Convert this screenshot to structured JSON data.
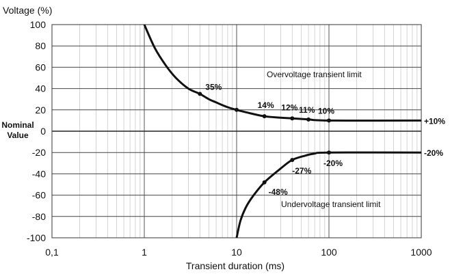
{
  "chart_data": {
    "type": "line",
    "ylabel": "Voltage (%)",
    "xlabel": "Transient duration (ms)",
    "nominal_label": [
      "Nominal",
      "Value"
    ],
    "x_scale": "log",
    "xlim": [
      0.1,
      1000
    ],
    "ylim": [
      -100,
      100
    ],
    "x_tick_values": [
      0.1,
      1,
      10,
      100,
      1000
    ],
    "x_tick_labels": [
      "0,1",
      "1",
      "10",
      "100",
      "1000"
    ],
    "y_tick_values": [
      100,
      80,
      60,
      40,
      20,
      0,
      -20,
      -40,
      -60,
      -80,
      -100
    ],
    "y_tick_labels": [
      "100",
      "80",
      "60",
      "40",
      "20",
      "0",
      "-20",
      "-40",
      "-60",
      "-80",
      "-100"
    ],
    "grid": true,
    "series": [
      {
        "key": "overvoltage",
        "color": "#111111",
        "curve": [
          [
            1,
            100
          ],
          [
            1.3,
            78
          ],
          [
            1.7,
            62
          ],
          [
            2.2,
            50
          ],
          [
            3,
            40
          ],
          [
            4,
            35
          ],
          [
            5,
            30
          ],
          [
            6,
            27
          ],
          [
            8,
            22.5
          ],
          [
            10,
            20
          ],
          [
            13,
            17.5
          ],
          [
            20,
            14
          ],
          [
            30,
            12.7
          ],
          [
            40,
            12
          ],
          [
            60,
            11
          ],
          [
            100,
            10
          ],
          [
            1000,
            10
          ]
        ],
        "markers": [
          {
            "x": 4,
            "y": 35,
            "label": "35%"
          },
          {
            "x": 10,
            "y": 20
          },
          {
            "x": 20,
            "y": 14,
            "label": "14%"
          },
          {
            "x": 40,
            "y": 12,
            "label": "12%"
          },
          {
            "x": 60,
            "y": 11,
            "label": "11%"
          },
          {
            "x": 100,
            "y": 10,
            "label": "10%"
          }
        ],
        "end_label": "+10%"
      },
      {
        "key": "undervoltage",
        "color": "#111111",
        "curve": [
          [
            10,
            -100
          ],
          [
            11,
            -84
          ],
          [
            12.5,
            -72
          ],
          [
            15,
            -61
          ],
          [
            20,
            -48
          ],
          [
            30,
            -35
          ],
          [
            40,
            -27
          ],
          [
            55,
            -23
          ],
          [
            70,
            -21
          ],
          [
            100,
            -20
          ],
          [
            1000,
            -20
          ]
        ],
        "markers": [
          {
            "x": 20,
            "y": -48,
            "label": "-48%"
          },
          {
            "x": 40,
            "y": -27,
            "label": "-27%"
          },
          {
            "x": 100,
            "y": -20,
            "label": "-20%"
          }
        ],
        "end_label": "-20%"
      }
    ],
    "annotations": {
      "overvoltage": "Overvoltage transient limit",
      "undervoltage": "Undervoltage transient limit"
    }
  }
}
